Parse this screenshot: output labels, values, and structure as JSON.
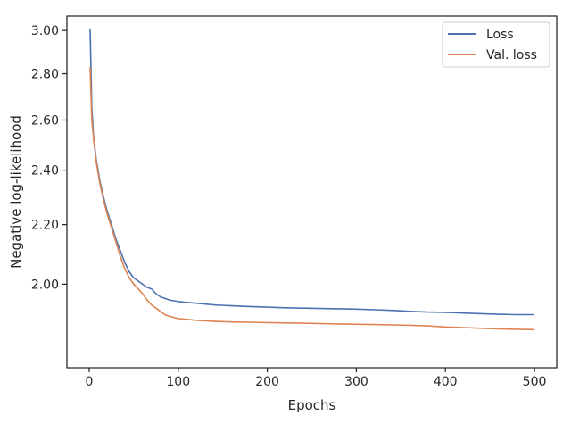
{
  "chart_data": {
    "type": "line",
    "xlabel": "Epochs",
    "ylabel": "Negative log-likelihood",
    "y_scale": "log",
    "xlim": [
      -25,
      525
    ],
    "ylim": [
      1.75,
      3.07
    ],
    "x_ticks": [
      0,
      100,
      200,
      300,
      400,
      500
    ],
    "x_tick_labels": [
      "0",
      "100",
      "200",
      "300",
      "400",
      "500"
    ],
    "y_ticks": [
      2.0,
      2.2,
      2.4,
      2.6,
      2.8,
      3.0
    ],
    "y_tick_labels": [
      "2.00",
      "2.20",
      "2.40",
      "2.60",
      "2.80",
      "3.00"
    ],
    "grid": false,
    "legend_position": "top-right",
    "series": [
      {
        "name": "Loss",
        "color": "#4c72b0",
        "x": [
          1,
          3,
          5,
          8,
          12,
          16,
          20,
          25,
          30,
          35,
          40,
          45,
          50,
          55,
          60,
          65,
          70,
          75,
          80,
          85,
          90,
          100,
          120,
          140,
          160,
          180,
          200,
          220,
          240,
          260,
          280,
          300,
          320,
          340,
          360,
          380,
          400,
          420,
          440,
          460,
          480,
          500
        ],
        "values": [
          3.01,
          2.65,
          2.53,
          2.44,
          2.36,
          2.3,
          2.25,
          2.2,
          2.15,
          2.11,
          2.07,
          2.04,
          2.02,
          2.01,
          2.0,
          1.99,
          1.985,
          1.97,
          1.96,
          1.955,
          1.95,
          1.945,
          1.94,
          1.935,
          1.932,
          1.93,
          1.928,
          1.926,
          1.925,
          1.924,
          1.923,
          1.922,
          1.92,
          1.918,
          1.915,
          1.913,
          1.912,
          1.91,
          1.908,
          1.906,
          1.905,
          1.905
        ]
      },
      {
        "name": "Val. loss",
        "color": "#dd8452",
        "x": [
          1,
          3,
          5,
          8,
          12,
          16,
          20,
          25,
          30,
          35,
          40,
          45,
          50,
          55,
          60,
          65,
          70,
          75,
          80,
          85,
          90,
          100,
          120,
          140,
          160,
          180,
          200,
          220,
          240,
          260,
          280,
          300,
          320,
          340,
          360,
          380,
          400,
          420,
          440,
          460,
          480,
          500
        ],
        "values": [
          2.83,
          2.6,
          2.52,
          2.43,
          2.35,
          2.29,
          2.24,
          2.19,
          2.14,
          2.09,
          2.05,
          2.02,
          2.0,
          1.985,
          1.97,
          1.95,
          1.935,
          1.925,
          1.915,
          1.905,
          1.9,
          1.893,
          1.888,
          1.885,
          1.883,
          1.882,
          1.881,
          1.88,
          1.879,
          1.878,
          1.877,
          1.876,
          1.875,
          1.874,
          1.873,
          1.871,
          1.868,
          1.866,
          1.864,
          1.862,
          1.861,
          1.86
        ]
      }
    ]
  }
}
